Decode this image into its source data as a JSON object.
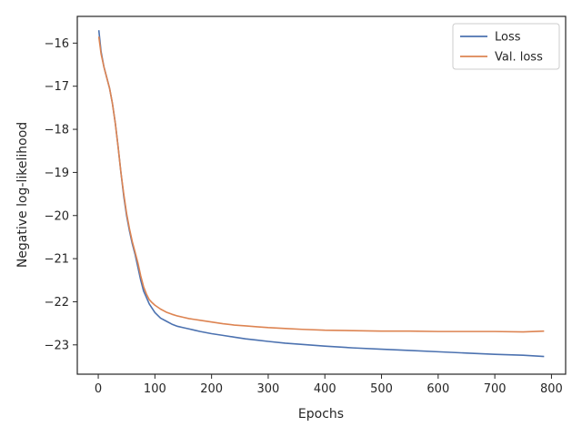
{
  "chart_data": {
    "type": "line",
    "title": "",
    "xlabel": "Epochs",
    "ylabel": "Negative log-likelihood",
    "xlim": [
      -37,
      825
    ],
    "ylim": [
      -23.68,
      -15.38
    ],
    "xticks": [
      0,
      100,
      200,
      300,
      400,
      500,
      600,
      700,
      800
    ],
    "yticks": [
      -16,
      -17,
      -18,
      -19,
      -20,
      -21,
      -22,
      -23
    ],
    "xtick_labels": [
      "0",
      "100",
      "200",
      "300",
      "400",
      "500",
      "600",
      "700",
      "800"
    ],
    "ytick_labels": [
      "−16",
      "−17",
      "−18",
      "−19",
      "−20",
      "−21",
      "−22",
      "−23"
    ],
    "grid": false,
    "legend_position": "top-right",
    "series": [
      {
        "name": "Loss",
        "color": "#4c72b0",
        "x": [
          1,
          5,
          10,
          15,
          20,
          25,
          30,
          35,
          40,
          45,
          50,
          55,
          60,
          65,
          70,
          75,
          80,
          85,
          90,
          95,
          100,
          110,
          120,
          130,
          140,
          150,
          160,
          170,
          180,
          200,
          220,
          240,
          260,
          280,
          300,
          330,
          360,
          400,
          450,
          500,
          550,
          600,
          650,
          700,
          750,
          787
        ],
        "y": [
          -15.7,
          -16.2,
          -16.55,
          -16.8,
          -17.05,
          -17.4,
          -17.85,
          -18.4,
          -19.0,
          -19.55,
          -20.0,
          -20.35,
          -20.65,
          -20.9,
          -21.2,
          -21.5,
          -21.75,
          -21.9,
          -22.05,
          -22.15,
          -22.25,
          -22.38,
          -22.45,
          -22.52,
          -22.57,
          -22.6,
          -22.63,
          -22.66,
          -22.69,
          -22.74,
          -22.78,
          -22.82,
          -22.86,
          -22.89,
          -22.92,
          -22.96,
          -22.99,
          -23.03,
          -23.07,
          -23.1,
          -23.13,
          -23.16,
          -23.19,
          -23.22,
          -23.24,
          -23.27
        ]
      },
      {
        "name": "Val. loss",
        "color": "#dd8452",
        "x": [
          1,
          5,
          10,
          15,
          20,
          25,
          30,
          35,
          40,
          45,
          50,
          55,
          60,
          65,
          70,
          75,
          80,
          85,
          90,
          95,
          100,
          110,
          120,
          130,
          140,
          150,
          160,
          170,
          180,
          200,
          220,
          240,
          260,
          280,
          300,
          330,
          360,
          400,
          450,
          500,
          550,
          600,
          650,
          700,
          750,
          787
        ],
        "y": [
          -15.85,
          -16.25,
          -16.55,
          -16.8,
          -17.05,
          -17.4,
          -17.85,
          -18.4,
          -19.0,
          -19.5,
          -19.95,
          -20.3,
          -20.6,
          -20.85,
          -21.1,
          -21.4,
          -21.65,
          -21.82,
          -21.95,
          -22.02,
          -22.08,
          -22.17,
          -22.24,
          -22.29,
          -22.33,
          -22.36,
          -22.39,
          -22.41,
          -22.43,
          -22.47,
          -22.51,
          -22.54,
          -22.56,
          -22.58,
          -22.6,
          -22.62,
          -22.64,
          -22.66,
          -22.67,
          -22.68,
          -22.68,
          -22.69,
          -22.69,
          -22.69,
          -22.7,
          -22.68
        ]
      }
    ]
  }
}
